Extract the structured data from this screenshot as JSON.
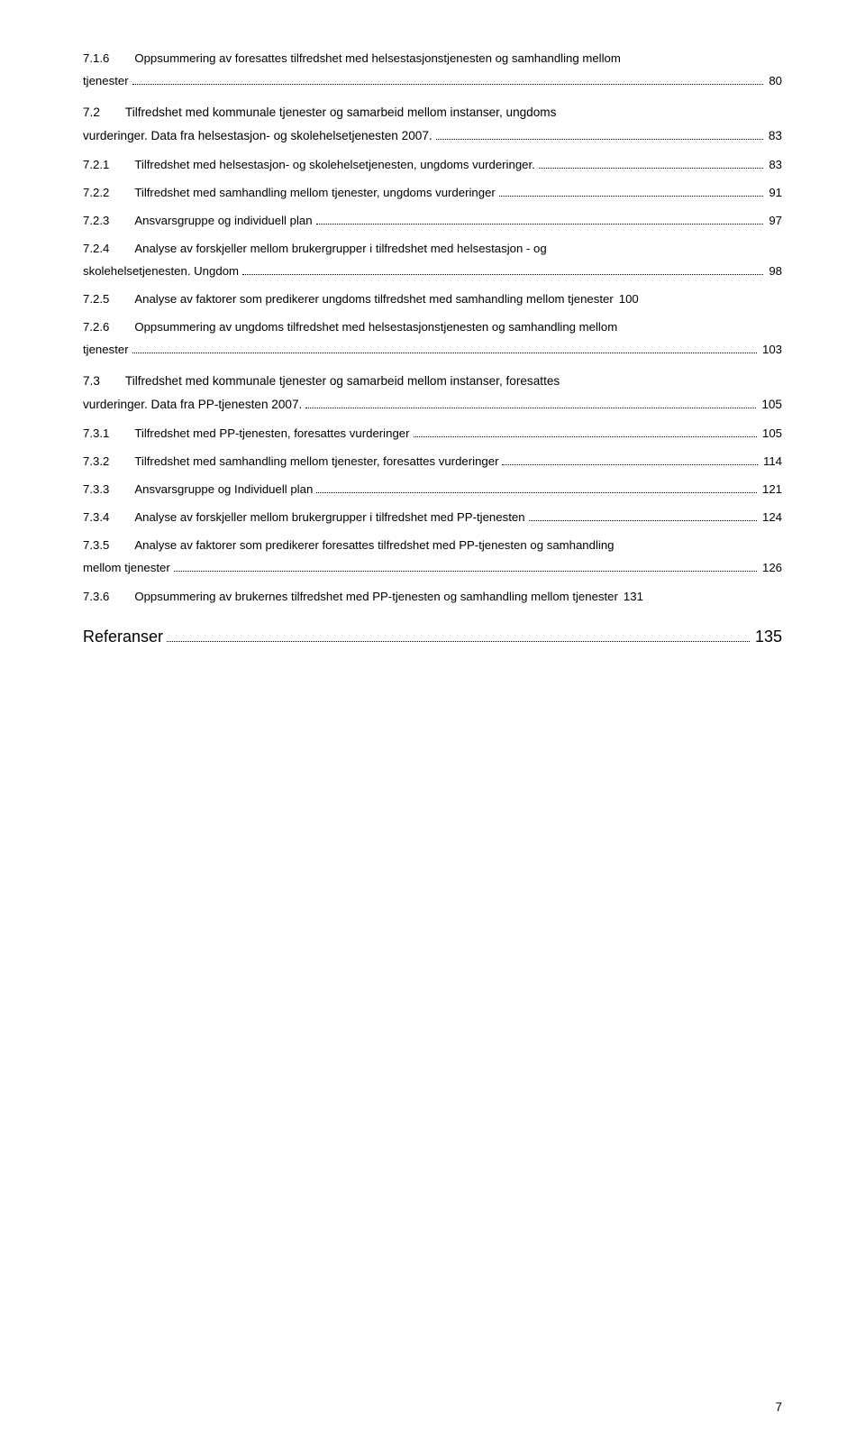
{
  "entries": [
    {
      "type": "multi",
      "num": "7.1.6",
      "text1": "Oppsummering av foresattes tilfredshet med helsestasjonstjenesten og  samhandling mellom",
      "text2": "tjenester",
      "page": "80"
    },
    {
      "type": "section-multi",
      "num": "7.2",
      "text1": "Tilfredshet med kommunale tjenester og samarbeid mellom instanser, ungdoms",
      "text2": "vurderinger. Data fra helsestasjon- og skolehelsetjenesten 2007.",
      "page": "83"
    },
    {
      "type": "single",
      "num": "7.2.1",
      "text": "Tilfredshet med helsestasjon- og skolehelsetjenesten, ungdoms vurderinger.",
      "page": "83"
    },
    {
      "type": "single",
      "num": "7.2.2",
      "text": "Tilfredshet med samhandling mellom tjenester, ungdoms vurderinger",
      "page": "91"
    },
    {
      "type": "single",
      "num": "7.2.3",
      "text": "Ansvarsgruppe og individuell plan",
      "page": "97"
    },
    {
      "type": "multi",
      "num": "7.2.4",
      "text1": "Analyse av forskjeller mellom brukergrupper i tilfredshet med helsestasjon -  og",
      "text2": "skolehelsetjenesten. Ungdom",
      "page": "98"
    },
    {
      "type": "single-nodots",
      "num": "7.2.5",
      "text": "Analyse av faktorer som predikerer ungdoms tilfredshet med samhandling mellom tjenester",
      "page": "100"
    },
    {
      "type": "multi",
      "num": "7.2.6",
      "text1": "Oppsummering av ungdoms tilfredshet med helsestasjonstjenesten og  samhandling mellom",
      "text2": "tjenester",
      "page": "103"
    },
    {
      "type": "section-multi",
      "num": "7.3",
      "text1": "Tilfredshet med kommunale tjenester og samarbeid mellom instanser, foresattes",
      "text2": "vurderinger. Data fra PP-tjenesten 2007.",
      "page": "105"
    },
    {
      "type": "single",
      "num": "7.3.1",
      "text": "Tilfredshet med PP-tjenesten, foresattes vurderinger",
      "page": "105"
    },
    {
      "type": "single",
      "num": "7.3.2",
      "text": "Tilfredshet med samhandling mellom tjenester, foresattes vurderinger",
      "page": "114"
    },
    {
      "type": "single",
      "num": "7.3.3",
      "text": "Ansvarsgruppe og Individuell plan",
      "page": "121"
    },
    {
      "type": "single",
      "num": "7.3.4",
      "text": "Analyse av forskjeller mellom brukergrupper i tilfredshet med PP-tjenesten",
      "page": "124"
    },
    {
      "type": "multi",
      "num": "7.3.5",
      "text1": "Analyse av faktorer som predikerer foresattes tilfredshet med PP-tjenesten og samhandling",
      "text2": "mellom tjenester",
      "page": "126"
    },
    {
      "type": "single-nodots",
      "num": "7.3.6",
      "text": "Oppsummering av brukernes tilfredshet med PP-tjenesten og samhandling  mellom tjenester",
      "page": "131"
    }
  ],
  "references": {
    "label": "Referanser",
    "page": "135"
  },
  "page_number": "7"
}
